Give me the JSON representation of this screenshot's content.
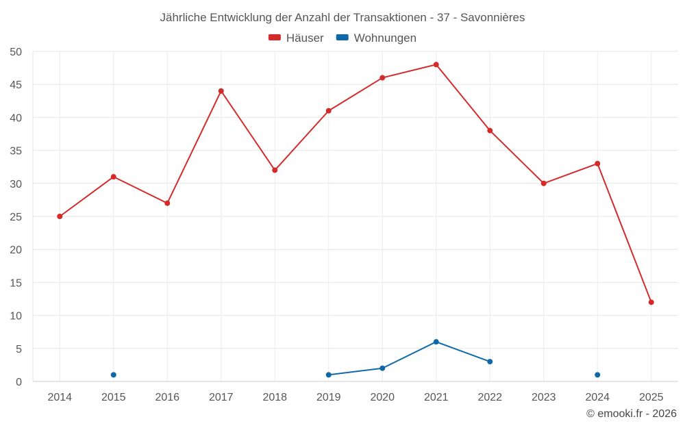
{
  "chart_data": {
    "type": "line",
    "title": "Jährliche Entwicklung der Anzahl der Transaktionen - 37 - Savonnières",
    "categories": [
      "2014",
      "2015",
      "2016",
      "2017",
      "2018",
      "2019",
      "2020",
      "2021",
      "2022",
      "2023",
      "2024",
      "2025"
    ],
    "ylim": [
      0,
      50
    ],
    "yticks": [
      0,
      5,
      10,
      15,
      20,
      25,
      30,
      35,
      40,
      45,
      50
    ],
    "grid": true,
    "legend_position": "top-center",
    "xlabel": "",
    "ylabel": "",
    "series": [
      {
        "name": "Häuser",
        "color": "#d42a2a",
        "values": [
          25,
          31,
          27,
          44,
          32,
          41,
          46,
          48,
          38,
          30,
          33,
          12
        ]
      },
      {
        "name": "Wohnungen",
        "color": "#0f68a8",
        "values": [
          null,
          1,
          null,
          null,
          null,
          1,
          2,
          6,
          3,
          null,
          1,
          null
        ]
      }
    ]
  },
  "credit": "© emooki.fr - 2026"
}
